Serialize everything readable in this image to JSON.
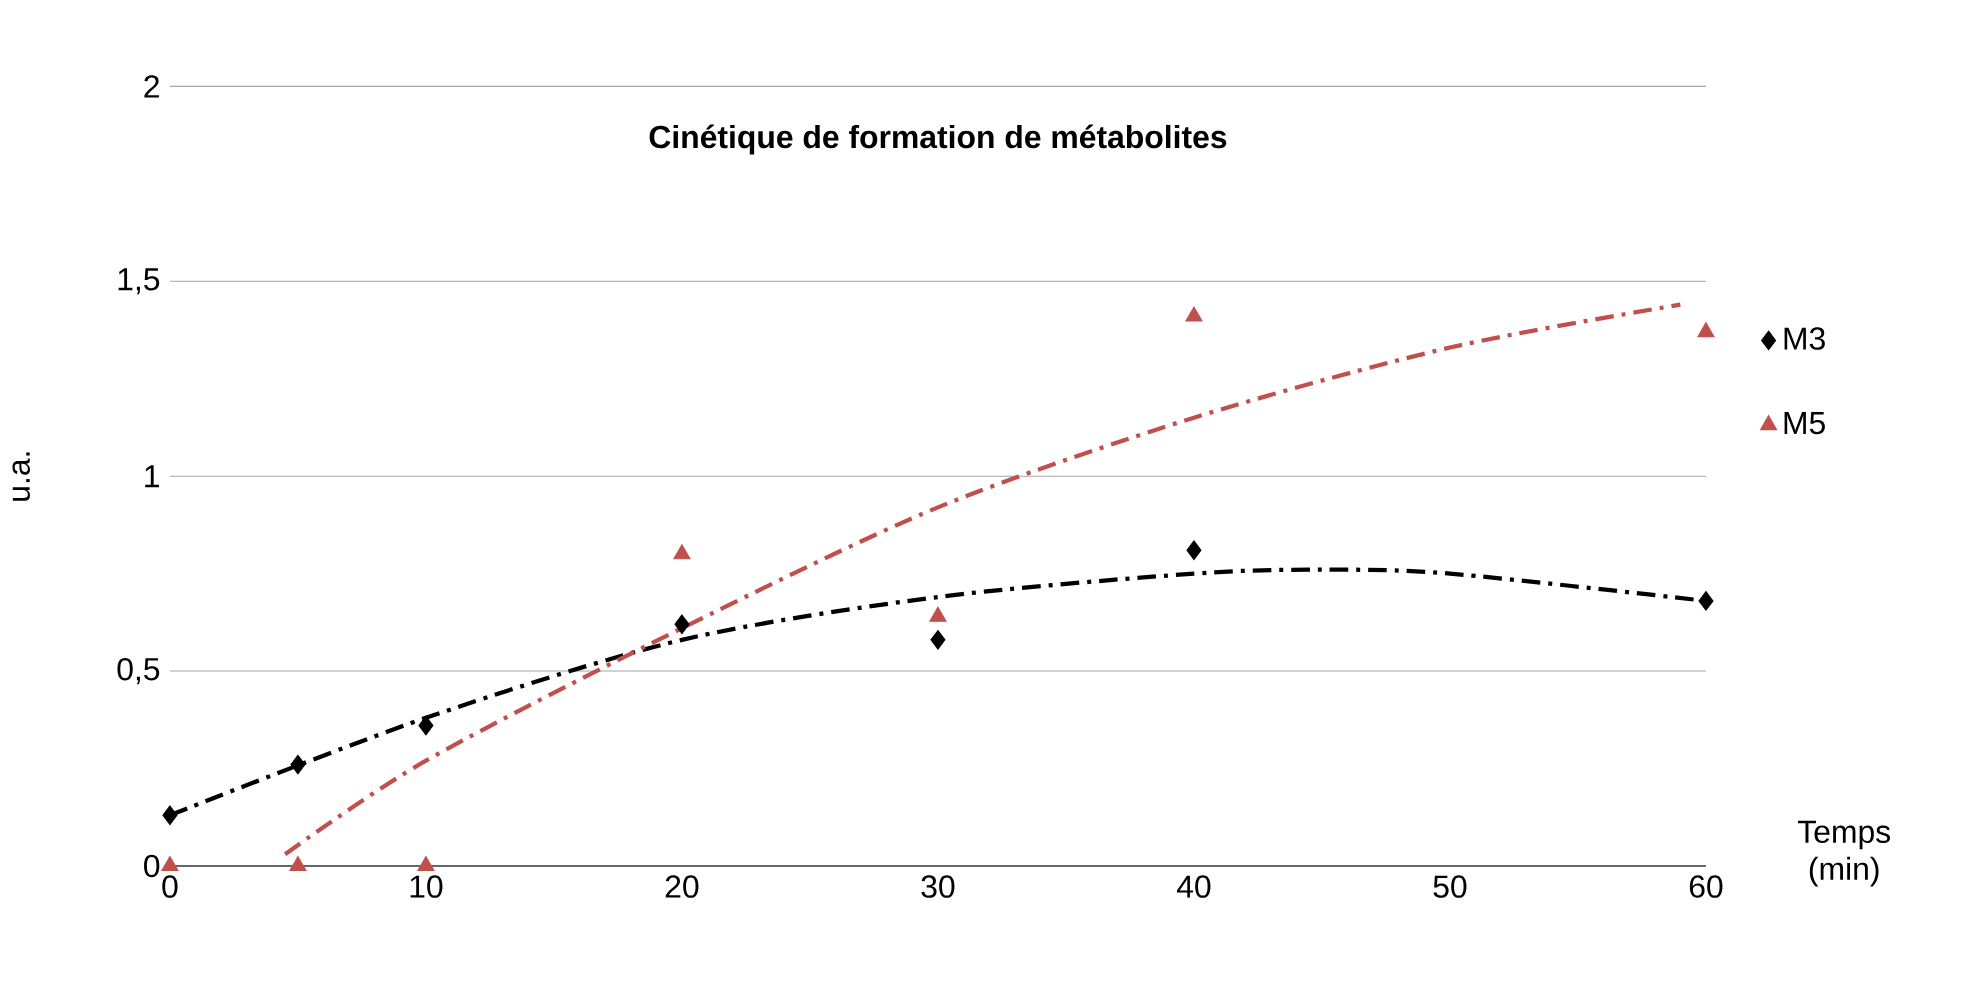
{
  "chart_data": {
    "type": "scatter",
    "title": "Cinétique de formation de métabolites",
    "xlabel": "Temps (min)",
    "ylabel": "u.a.",
    "xlim": [
      0,
      60
    ],
    "xticks": [
      0,
      10,
      20,
      30,
      40,
      50,
      60
    ],
    "ylim": [
      0,
      2
    ],
    "yticks": [
      0,
      {
        "value": 0.5,
        "label": "0,5"
      },
      1,
      {
        "value": 1.5,
        "label": "1,5"
      },
      2
    ],
    "grid": "y",
    "legend": "right",
    "series": [
      {
        "name": "M3",
        "color": "#000000",
        "marker": "diamond",
        "x": [
          0,
          5,
          10,
          20,
          30,
          40,
          60
        ],
        "values": [
          0.13,
          0.26,
          0.36,
          0.62,
          0.58,
          0.81,
          0.68
        ]
      },
      {
        "name": "M5",
        "color": "#c0504d",
        "marker": "triangle",
        "x": [
          0,
          5,
          10,
          20,
          30,
          40,
          60
        ],
        "values": [
          0,
          0,
          0,
          0.8,
          0.64,
          1.41,
          1.37
        ]
      },
      {
        "type": "line",
        "color": "#000000",
        "line_style": "dashed",
        "x": [
          0,
          10,
          20,
          30,
          40,
          45,
          50,
          60
        ],
        "values": [
          0.13,
          0.38,
          0.58,
          0.69,
          0.75,
          0.76,
          0.75,
          0.68
        ]
      },
      {
        "type": "line",
        "color": "#c0504d",
        "line_style": "dashed",
        "x": [
          4.5,
          10,
          20,
          30,
          40,
          50,
          59
        ],
        "values": [
          0.03,
          0.27,
          0.61,
          0.92,
          1.15,
          1.33,
          1.44
        ]
      }
    ]
  }
}
